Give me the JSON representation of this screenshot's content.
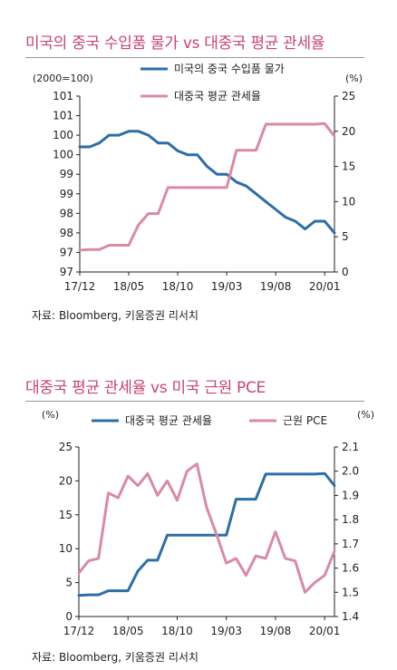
{
  "chart_data": [
    {
      "type": "line",
      "title": "미국의 중국 수입품 물가 vs 대중국 평균 관세율",
      "left_unit": "(2000=100)",
      "right_unit": "(%)",
      "categories": [
        "17/12",
        "18/05",
        "18/10",
        "19/03",
        "19/08",
        "20/01"
      ],
      "left_ticks": [
        "97",
        "97",
        "98",
        "98",
        "99",
        "99",
        "100",
        "100",
        "101",
        "101"
      ],
      "right_ticks": [
        "0",
        "5",
        "10",
        "15",
        "20",
        "25"
      ],
      "left_ylim": [
        97.0,
        101.5
      ],
      "right_ylim": [
        0,
        25
      ],
      "grid": false,
      "legend_position": "top",
      "source": "자료: Bloomberg, 키움증권 리서치",
      "series": [
        {
          "name": "미국의 중국 수입품 물가",
          "axis": "left",
          "color": "#2e6ea6",
          "x": [
            "2017-12",
            "2018-01",
            "2018-02",
            "2018-03",
            "2018-04",
            "2018-05",
            "2018-06",
            "2018-07",
            "2018-08",
            "2018-09",
            "2018-10",
            "2018-11",
            "2018-12",
            "2019-01",
            "2019-02",
            "2019-03",
            "2019-04",
            "2019-05",
            "2019-06",
            "2019-07",
            "2019-08",
            "2019-09",
            "2019-10",
            "2019-11",
            "2019-12",
            "2020-01",
            "2020-02"
          ],
          "values": [
            100.2,
            100.2,
            100.3,
            100.5,
            100.5,
            100.6,
            100.6,
            100.5,
            100.3,
            100.3,
            100.1,
            100.0,
            100.0,
            99.7,
            99.5,
            99.5,
            99.3,
            99.2,
            99.0,
            98.8,
            98.6,
            98.4,
            98.3,
            98.1,
            98.3,
            98.3,
            98.0
          ]
        },
        {
          "name": "대중국 평균 관세율",
          "axis": "right",
          "color": "#d98aa5",
          "x": [
            "2017-12",
            "2018-01",
            "2018-02",
            "2018-03",
            "2018-04",
            "2018-05",
            "2018-06",
            "2018-07",
            "2018-08",
            "2018-09",
            "2018-10",
            "2018-11",
            "2018-12",
            "2019-01",
            "2019-02",
            "2019-03",
            "2019-04",
            "2019-05",
            "2019-06",
            "2019-07",
            "2019-08",
            "2019-09",
            "2019-10",
            "2019-11",
            "2019-12",
            "2020-01",
            "2020-02"
          ],
          "values": [
            3.1,
            3.2,
            3.2,
            3.8,
            3.8,
            3.8,
            6.7,
            8.3,
            8.3,
            12.0,
            12.0,
            12.0,
            12.0,
            12.0,
            12.0,
            12.0,
            17.3,
            17.3,
            17.3,
            21.0,
            21.0,
            21.0,
            21.0,
            21.0,
            21.0,
            21.1,
            19.3
          ]
        }
      ]
    },
    {
      "type": "line",
      "title": "대중국 평균 관세율 vs 미국 근원 PCE",
      "left_unit": "(%)",
      "right_unit": "(%)",
      "categories": [
        "17/12",
        "18/05",
        "18/10",
        "19/03",
        "19/08",
        "20/01"
      ],
      "left_ticks": [
        "0",
        "5",
        "10",
        "15",
        "20",
        "25"
      ],
      "right_ticks": [
        "1.4",
        "1.5",
        "1.6",
        "1.7",
        "1.8",
        "1.9",
        "2.0",
        "2.1"
      ],
      "left_ylim": [
        0,
        25
      ],
      "right_ylim": [
        1.4,
        2.1
      ],
      "grid": false,
      "legend_position": "top",
      "source": "자료: Bloomberg, 키움증권 리서치",
      "series": [
        {
          "name": "대중국 평균 관세율",
          "axis": "left",
          "color": "#2e6ea6",
          "x": [
            "2017-12",
            "2018-01",
            "2018-02",
            "2018-03",
            "2018-04",
            "2018-05",
            "2018-06",
            "2018-07",
            "2018-08",
            "2018-09",
            "2018-10",
            "2018-11",
            "2018-12",
            "2019-01",
            "2019-02",
            "2019-03",
            "2019-04",
            "2019-05",
            "2019-06",
            "2019-07",
            "2019-08",
            "2019-09",
            "2019-10",
            "2019-11",
            "2019-12",
            "2020-01",
            "2020-02"
          ],
          "values": [
            3.1,
            3.2,
            3.2,
            3.8,
            3.8,
            3.8,
            6.7,
            8.3,
            8.3,
            12.0,
            12.0,
            12.0,
            12.0,
            12.0,
            12.0,
            12.0,
            17.3,
            17.3,
            17.3,
            21.0,
            21.0,
            21.0,
            21.0,
            21.0,
            21.0,
            21.1,
            19.3
          ]
        },
        {
          "name": "근원 PCE",
          "axis": "right",
          "color": "#d98aa5",
          "x": [
            "2017-12",
            "2018-01",
            "2018-02",
            "2018-03",
            "2018-04",
            "2018-05",
            "2018-06",
            "2018-07",
            "2018-08",
            "2018-09",
            "2018-10",
            "2018-11",
            "2018-12",
            "2019-01",
            "2019-02",
            "2019-03",
            "2019-04",
            "2019-05",
            "2019-06",
            "2019-07",
            "2019-08",
            "2019-09",
            "2019-10",
            "2019-11",
            "2019-12",
            "2020-01",
            "2020-02"
          ],
          "values": [
            1.58,
            1.63,
            1.64,
            1.91,
            1.89,
            1.98,
            1.94,
            1.99,
            1.9,
            1.96,
            1.88,
            2.0,
            2.03,
            1.85,
            1.74,
            1.62,
            1.64,
            1.57,
            1.65,
            1.64,
            1.75,
            1.64,
            1.63,
            1.5,
            1.54,
            1.57,
            1.67
          ]
        }
      ]
    }
  ]
}
